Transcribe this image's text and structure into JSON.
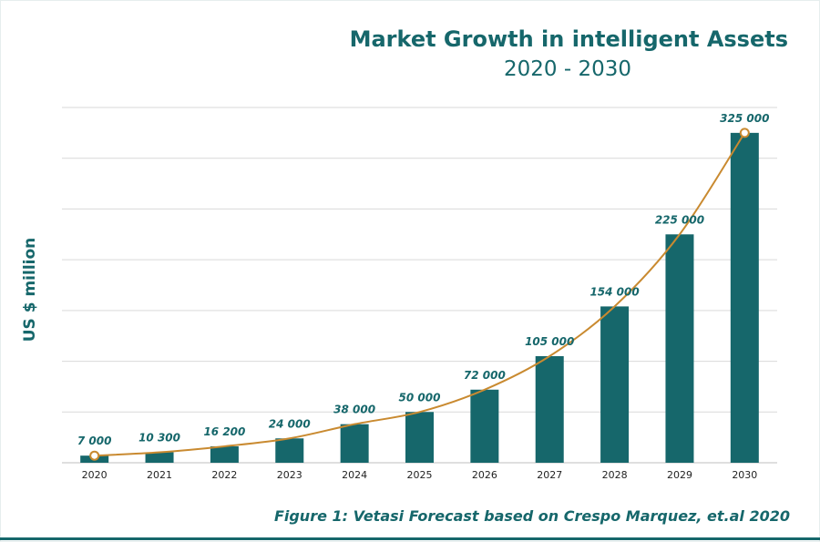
{
  "chart_data": {
    "type": "bar",
    "title": "Market Growth in intelligent Assets",
    "subtitle": "2020 - 2030",
    "xlabel": "",
    "ylabel": "US $ million",
    "categories": [
      "2020",
      "2021",
      "2022",
      "2023",
      "2024",
      "2025",
      "2026",
      "2027",
      "2028",
      "2029",
      "2030"
    ],
    "values": [
      7000,
      10300,
      16200,
      24000,
      38000,
      50000,
      72000,
      105000,
      154000,
      225000,
      325000
    ],
    "value_labels": [
      "7 000",
      "10 300",
      "16 200",
      "24 000",
      "38 000",
      "50 000",
      "72 000",
      "105 000",
      "154 000",
      "225 000",
      "325 000"
    ],
    "ylim": [
      0,
      350000
    ],
    "grid": true,
    "trend_line": true,
    "trend_markers": [
      "2020",
      "2030"
    ],
    "colors": {
      "bar": "#16676b",
      "trend": "#c98a30",
      "grid": "#d9d9d9",
      "text": "#16676b"
    }
  },
  "caption": "Figure 1: Vetasi Forecast based on Crespo Marquez, et.al 2020"
}
